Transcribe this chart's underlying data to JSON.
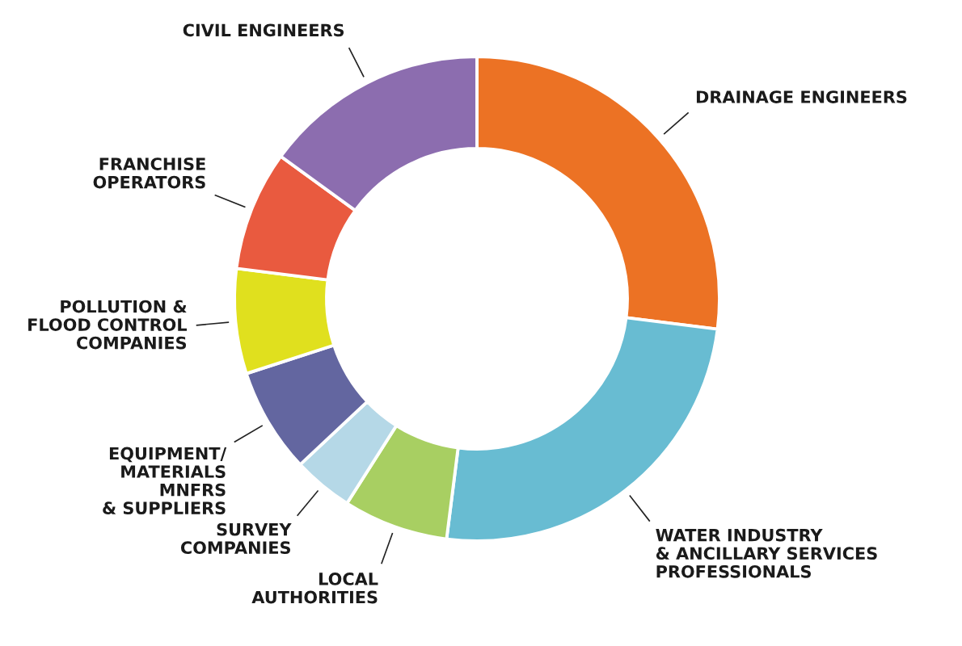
{
  "chart_data": {
    "type": "donut",
    "categories": [
      "DRAINAGE ENGINEERS",
      "WATER INDUSTRY\n& ANCILLARY SERVICES\nPROFESSIONALS",
      "LOCAL\nAUTHORITIES",
      "SURVEY\nCOMPANIES",
      "EQUIPMENT/\nMATERIALS\nMNFRS\n& SUPPLIERS",
      "POLLUTION &\nFLOOD CONTROL\nCOMPANIES",
      "FRANCHISE\nOPERATORS",
      "CIVIL ENGINEERS"
    ],
    "values": [
      27,
      25,
      7,
      4,
      7,
      7,
      8,
      15
    ],
    "colors": [
      "#ec7224",
      "#68bcd2",
      "#a8cf62",
      "#b5d8e7",
      "#6366a0",
      "#e0e01e",
      "#e95a3f",
      "#8c6daf"
    ]
  }
}
